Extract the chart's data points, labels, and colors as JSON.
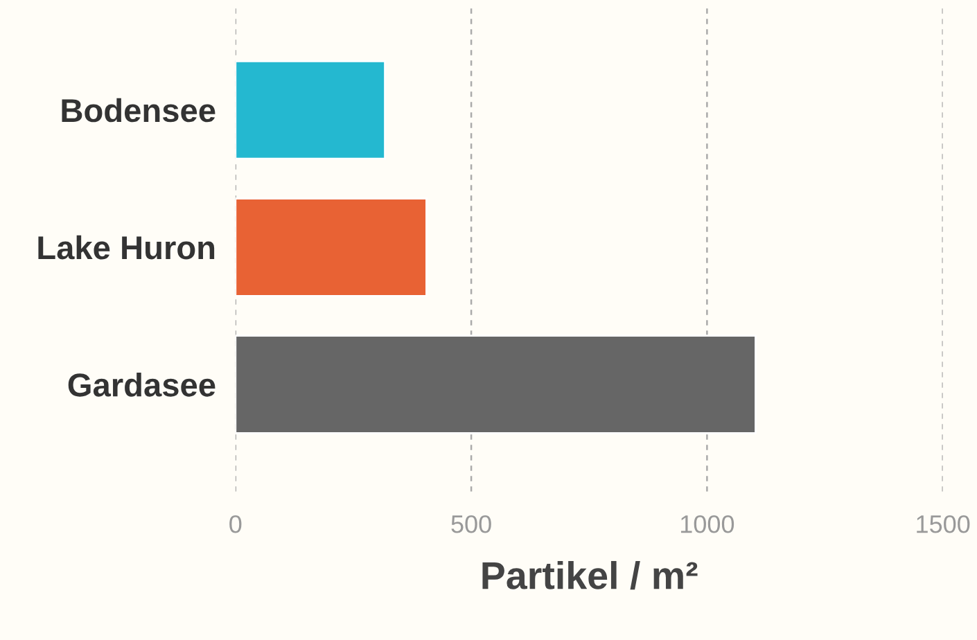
{
  "chart_data": {
    "type": "bar",
    "orientation": "horizontal",
    "xlabel": "Partikel / m²",
    "categories": [
      "Bodensee",
      "Lake Huron",
      "Gardasee"
    ],
    "values": [
      317,
      405,
      1103
    ],
    "colors": [
      "#24b8d0",
      "#e86234",
      "#666666"
    ],
    "xlim": [
      0,
      1500
    ],
    "xticks": [
      0,
      500,
      1000,
      1500
    ],
    "grid": "x",
    "legend": false
  }
}
